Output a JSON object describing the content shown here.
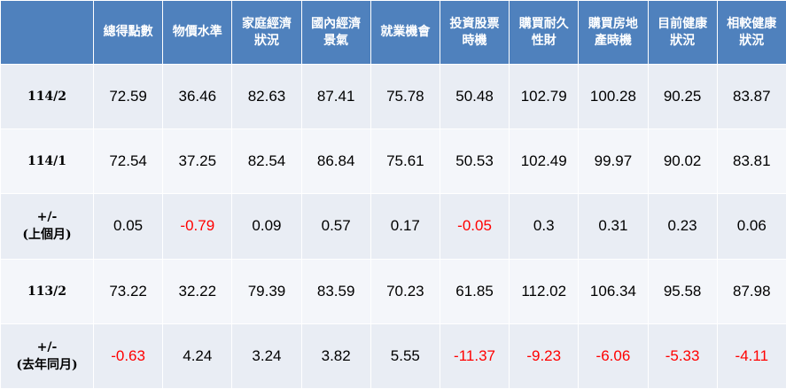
{
  "table": {
    "header": [
      "總得點數",
      "物價水準",
      "家庭經濟狀況",
      "國內經濟景氣",
      "就業機會",
      "投資股票時機",
      "購買耐久性財",
      "購買房地產時機",
      "目前健康狀況",
      "相較健康狀況"
    ],
    "rows": [
      {
        "label": [
          "114/2"
        ],
        "values": [
          72.59,
          36.46,
          82.63,
          87.41,
          75.78,
          50.48,
          102.79,
          100.28,
          90.25,
          83.87
        ]
      },
      {
        "label": [
          "114/1"
        ],
        "values": [
          72.54,
          37.25,
          82.54,
          86.84,
          75.61,
          50.53,
          102.49,
          99.97,
          90.02,
          83.81
        ]
      },
      {
        "label": [
          "+/-",
          "(上個月)"
        ],
        "values": [
          0.05,
          -0.79,
          0.09,
          0.57,
          0.17,
          -0.05,
          0.3,
          0.31,
          0.23,
          0.06
        ]
      },
      {
        "label": [
          "113/2"
        ],
        "values": [
          73.22,
          32.22,
          79.39,
          83.59,
          70.23,
          61.85,
          112.02,
          106.34,
          95.58,
          87.98
        ]
      },
      {
        "label": [
          "+/-",
          "(去年同月)"
        ],
        "values": [
          -0.63,
          4.24,
          3.24,
          3.82,
          5.55,
          -11.37,
          -9.23,
          -6.06,
          -5.33,
          -4.11
        ]
      }
    ]
  }
}
